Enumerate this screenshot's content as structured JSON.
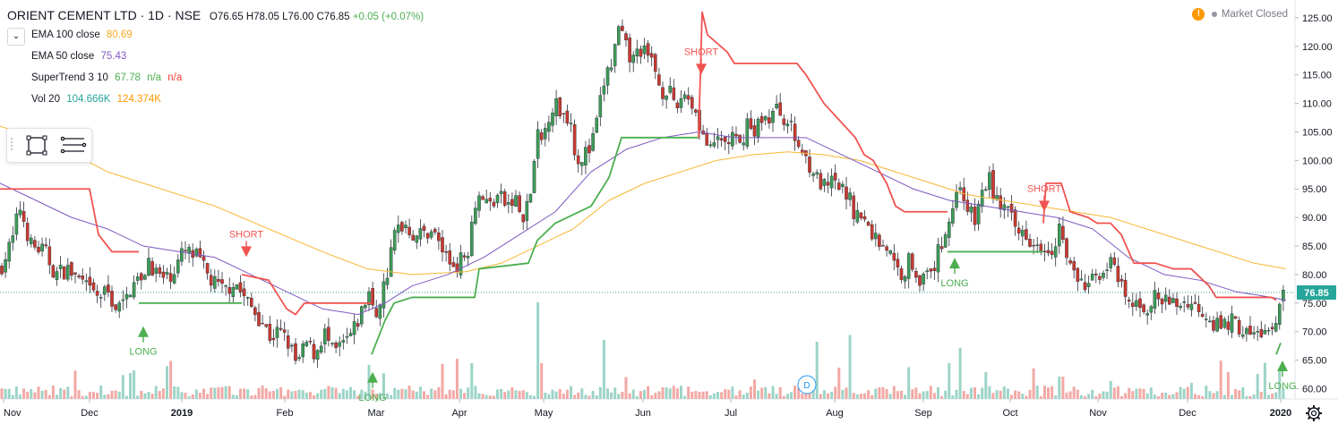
{
  "header": {
    "symbol": "ORIENT CEMENT LTD · 1D · NSE",
    "open": "O76.65",
    "high": "H78.05",
    "low": "L76.00",
    "close": "C76.85",
    "change": "+0.05 (+0.07%)"
  },
  "legend": [
    {
      "label": "EMA 100 close",
      "value": "80.69",
      "color": "#f5a623"
    },
    {
      "label": "EMA 50 close",
      "value": "75.43",
      "color": "#7e57c2"
    },
    {
      "label": "SuperTrend 3 10",
      "value": "67.78",
      "value2": "n/a",
      "value3": "n/a",
      "color": "#4caf50",
      "color3": "#f44336"
    },
    {
      "label": "Vol 20",
      "value": "104.666K",
      "value2": "124.374K",
      "color": "#26a69a",
      "color2": "#ff9800"
    }
  ],
  "market_status": "Market Closed",
  "market_warn_icon": "!",
  "collapse_icon": "chevron-down-icon",
  "price_label": "76.85",
  "event_marker": "D",
  "chart_data": {
    "type": "candlestick",
    "y_ticks": [
      "125.00",
      "120.00",
      "115.00",
      "110.00",
      "105.00",
      "100.00",
      "95.00",
      "90.00",
      "85.00",
      "80.00",
      "75.00",
      "70.00",
      "65.00",
      "60.00"
    ],
    "y_range": [
      58.2,
      127.8
    ],
    "x_ticks": [
      "Nov",
      "Dec",
      "2019",
      "Feb",
      "Mar",
      "Apr",
      "May",
      "Jun",
      "Jul",
      "Aug",
      "Sep",
      "Oct",
      "Nov",
      "Dec",
      "2020"
    ],
    "last_price": 76.85,
    "price_path": [
      [
        0,
        81
      ],
      [
        14,
        86
      ],
      [
        22,
        92
      ],
      [
        35,
        85
      ],
      [
        50,
        84
      ],
      [
        62,
        80
      ],
      [
        75,
        81
      ],
      [
        88,
        79
      ],
      [
        100,
        77
      ],
      [
        110,
        76
      ],
      [
        120,
        77
      ],
      [
        130,
        74
      ],
      [
        140,
        75
      ],
      [
        150,
        80
      ],
      [
        158,
        78
      ],
      [
        165,
        83
      ],
      [
        175,
        80
      ],
      [
        185,
        79
      ],
      [
        195,
        81
      ],
      [
        205,
        84
      ],
      [
        220,
        83
      ],
      [
        235,
        79
      ],
      [
        250,
        77
      ],
      [
        262,
        79
      ],
      [
        272,
        76
      ],
      [
        282,
        74
      ],
      [
        292,
        72
      ],
      [
        302,
        69
      ],
      [
        312,
        70
      ],
      [
        322,
        68
      ],
      [
        332,
        64
      ],
      [
        342,
        68
      ],
      [
        352,
        66
      ],
      [
        362,
        70
      ],
      [
        372,
        66
      ],
      [
        385,
        68
      ],
      [
        395,
        70
      ],
      [
        405,
        74
      ],
      [
        412,
        77
      ],
      [
        418,
        72
      ],
      [
        425,
        76
      ],
      [
        432,
        80
      ],
      [
        442,
        88
      ],
      [
        452,
        89
      ],
      [
        462,
        87
      ],
      [
        472,
        87
      ],
      [
        482,
        88
      ],
      [
        492,
        85
      ],
      [
        502,
        82
      ],
      [
        512,
        82
      ],
      [
        522,
        84
      ],
      [
        530,
        93
      ],
      [
        538,
        94
      ],
      [
        546,
        92
      ],
      [
        556,
        94
      ],
      [
        566,
        92
      ],
      [
        576,
        93
      ],
      [
        584,
        89
      ],
      [
        592,
        94
      ],
      [
        600,
        104
      ],
      [
        606,
        103
      ],
      [
        612,
        108
      ],
      [
        620,
        110
      ],
      [
        628,
        108
      ],
      [
        636,
        108
      ],
      [
        644,
        100
      ],
      [
        652,
        101
      ],
      [
        660,
        102
      ],
      [
        668,
        108
      ],
      [
        676,
        115
      ],
      [
        684,
        117
      ],
      [
        690,
        123
      ],
      [
        698,
        120
      ],
      [
        706,
        117
      ],
      [
        714,
        120
      ],
      [
        722,
        118
      ],
      [
        730,
        117
      ],
      [
        738,
        112
      ],
      [
        746,
        113
      ],
      [
        754,
        108
      ],
      [
        762,
        112
      ],
      [
        770,
        111
      ],
      [
        778,
        108
      ],
      [
        786,
        104
      ],
      [
        794,
        101
      ],
      [
        802,
        104
      ],
      [
        810,
        103
      ],
      [
        818,
        104
      ],
      [
        826,
        102
      ],
      [
        834,
        107
      ],
      [
        842,
        104
      ],
      [
        850,
        108
      ],
      [
        858,
        107
      ],
      [
        866,
        109
      ],
      [
        874,
        108
      ],
      [
        882,
        106
      ],
      [
        890,
        103
      ],
      [
        898,
        101
      ],
      [
        906,
        99
      ],
      [
        914,
        96
      ],
      [
        922,
        95
      ],
      [
        930,
        96
      ],
      [
        938,
        95
      ],
      [
        946,
        94
      ],
      [
        954,
        91
      ],
      [
        962,
        90
      ],
      [
        970,
        88
      ],
      [
        980,
        86
      ],
      [
        990,
        85
      ],
      [
        1000,
        81
      ],
      [
        1008,
        80
      ],
      [
        1016,
        83
      ],
      [
        1024,
        80
      ],
      [
        1032,
        79
      ],
      [
        1040,
        80
      ],
      [
        1048,
        84
      ],
      [
        1056,
        88
      ],
      [
        1064,
        92
      ],
      [
        1072,
        96
      ],
      [
        1080,
        92
      ],
      [
        1088,
        89
      ],
      [
        1096,
        94
      ],
      [
        1104,
        97
      ],
      [
        1112,
        93
      ],
      [
        1120,
        92
      ],
      [
        1128,
        90
      ],
      [
        1136,
        87
      ],
      [
        1144,
        88
      ],
      [
        1152,
        86
      ],
      [
        1160,
        86
      ],
      [
        1168,
        85
      ],
      [
        1176,
        85
      ],
      [
        1184,
        89
      ],
      [
        1192,
        82
      ],
      [
        1200,
        80
      ],
      [
        1208,
        78
      ],
      [
        1216,
        78
      ],
      [
        1224,
        80
      ],
      [
        1232,
        81
      ],
      [
        1240,
        82
      ],
      [
        1248,
        79
      ],
      [
        1256,
        76
      ],
      [
        1264,
        74
      ],
      [
        1272,
        75
      ],
      [
        1280,
        74
      ],
      [
        1290,
        76
      ],
      [
        1300,
        75
      ],
      [
        1310,
        75
      ],
      [
        1320,
        75
      ],
      [
        1330,
        75
      ],
      [
        1340,
        74
      ],
      [
        1350,
        73
      ],
      [
        1358,
        71
      ],
      [
        1366,
        71
      ],
      [
        1374,
        72
      ],
      [
        1382,
        71
      ],
      [
        1390,
        70
      ],
      [
        1398,
        69
      ],
      [
        1406,
        70
      ],
      [
        1414,
        70
      ],
      [
        1422,
        69
      ],
      [
        1430,
        75
      ],
      [
        1436,
        77
      ]
    ],
    "ema50_path": [
      [
        0,
        96
      ],
      [
        40,
        93
      ],
      [
        80,
        90
      ],
      [
        120,
        88
      ],
      [
        160,
        85
      ],
      [
        200,
        84
      ],
      [
        240,
        83
      ],
      [
        280,
        80
      ],
      [
        320,
        77
      ],
      [
        360,
        74
      ],
      [
        400,
        73
      ],
      [
        430,
        75
      ],
      [
        460,
        78
      ],
      [
        500,
        80
      ],
      [
        540,
        83
      ],
      [
        580,
        87
      ],
      [
        620,
        91
      ],
      [
        660,
        98
      ],
      [
        700,
        102
      ],
      [
        740,
        104
      ],
      [
        780,
        105
      ],
      [
        820,
        104
      ],
      [
        860,
        104
      ],
      [
        900,
        104
      ],
      [
        940,
        101
      ],
      [
        980,
        98
      ],
      [
        1020,
        95
      ],
      [
        1060,
        93
      ],
      [
        1100,
        92
      ],
      [
        1140,
        91
      ],
      [
        1180,
        90
      ],
      [
        1220,
        88
      ],
      [
        1260,
        83
      ],
      [
        1300,
        80
      ],
      [
        1340,
        79
      ],
      [
        1380,
        77
      ],
      [
        1420,
        76
      ],
      [
        1436,
        75.5
      ]
    ],
    "ema100_path": [
      [
        0,
        106
      ],
      [
        60,
        103
      ],
      [
        120,
        98
      ],
      [
        180,
        95
      ],
      [
        240,
        92
      ],
      [
        300,
        88
      ],
      [
        360,
        84
      ],
      [
        410,
        81
      ],
      [
        460,
        80
      ],
      [
        520,
        80.5
      ],
      [
        560,
        82
      ],
      [
        600,
        85
      ],
      [
        640,
        88
      ],
      [
        680,
        93
      ],
      [
        720,
        96
      ],
      [
        760,
        98
      ],
      [
        800,
        100
      ],
      [
        840,
        101
      ],
      [
        880,
        101.5
      ],
      [
        920,
        101
      ],
      [
        960,
        100
      ],
      [
        1000,
        98
      ],
      [
        1040,
        96
      ],
      [
        1080,
        94
      ],
      [
        1120,
        93
      ],
      [
        1160,
        92
      ],
      [
        1200,
        91
      ],
      [
        1240,
        90
      ],
      [
        1280,
        88
      ],
      [
        1320,
        86
      ],
      [
        1360,
        84
      ],
      [
        1400,
        82
      ],
      [
        1436,
        81
      ]
    ],
    "supertrend_segments": [
      {
        "color": "#f05350",
        "path": [
          [
            0,
            95
          ],
          [
            40,
            95
          ],
          [
            40,
            95
          ],
          [
            100,
            95
          ],
          [
            110,
            87
          ],
          [
            125,
            84
          ],
          [
            155,
            84
          ],
          [
            155,
            84
          ]
        ]
      },
      {
        "color": "#4caf50",
        "path": [
          [
            155,
            75
          ],
          [
            270,
            75
          ],
          [
            270,
            75
          ]
        ]
      },
      {
        "color": "#f05350",
        "path": [
          [
            270,
            80
          ],
          [
            300,
            79
          ],
          [
            320,
            74
          ],
          [
            330,
            73
          ],
          [
            340,
            75
          ],
          [
            415,
            75
          ]
        ]
      },
      {
        "color": "#4caf50",
        "path": [
          [
            415,
            66
          ],
          [
            430,
            72
          ],
          [
            440,
            75
          ],
          [
            460,
            76
          ],
          [
            530,
            76
          ],
          [
            535,
            81
          ],
          [
            590,
            82
          ],
          [
            600,
            86
          ],
          [
            620,
            89
          ],
          [
            660,
            92
          ],
          [
            680,
            97
          ],
          [
            694,
            104
          ],
          [
            780,
            104
          ]
        ]
      },
      {
        "color": "#f05350",
        "path": [
          [
            780,
            104
          ],
          [
            784,
            126
          ],
          [
            790,
            122
          ],
          [
            812,
            119
          ],
          [
            820,
            117
          ],
          [
            890,
            117
          ],
          [
            900,
            115
          ],
          [
            920,
            110
          ],
          [
            955,
            104
          ],
          [
            965,
            101
          ],
          [
            975,
            100
          ],
          [
            990,
            96
          ],
          [
            1000,
            92
          ],
          [
            1010,
            91
          ],
          [
            1040,
            91
          ],
          [
            1058,
            91
          ]
        ]
      },
      {
        "color": "#4caf50",
        "path": [
          [
            1058,
            84
          ],
          [
            1165,
            84
          ]
        ]
      },
      {
        "color": "#f05350",
        "path": [
          [
            1165,
            89
          ],
          [
            1168,
            96
          ],
          [
            1185,
            96
          ],
          [
            1195,
            91
          ],
          [
            1215,
            90
          ],
          [
            1225,
            89
          ],
          [
            1240,
            89
          ],
          [
            1252,
            87
          ],
          [
            1266,
            82
          ],
          [
            1290,
            82
          ],
          [
            1310,
            81
          ],
          [
            1330,
            81
          ],
          [
            1350,
            78
          ],
          [
            1358,
            76
          ],
          [
            1420,
            76
          ],
          [
            1425,
            75.5
          ]
        ]
      },
      {
        "color": "#4caf50",
        "path": [
          [
            1425,
            66
          ],
          [
            1430,
            68
          ]
        ]
      }
    ],
    "signals": [
      {
        "type": "LONG",
        "x": 160
      },
      {
        "type": "SHORT",
        "x": 275
      },
      {
        "type": "LONG",
        "x": 416
      },
      {
        "type": "SHORT",
        "x": 783
      },
      {
        "type": "LONG",
        "x": 1066
      },
      {
        "type": "SHORT",
        "x": 1166
      },
      {
        "type": "LONG",
        "x": 1432
      }
    ]
  }
}
